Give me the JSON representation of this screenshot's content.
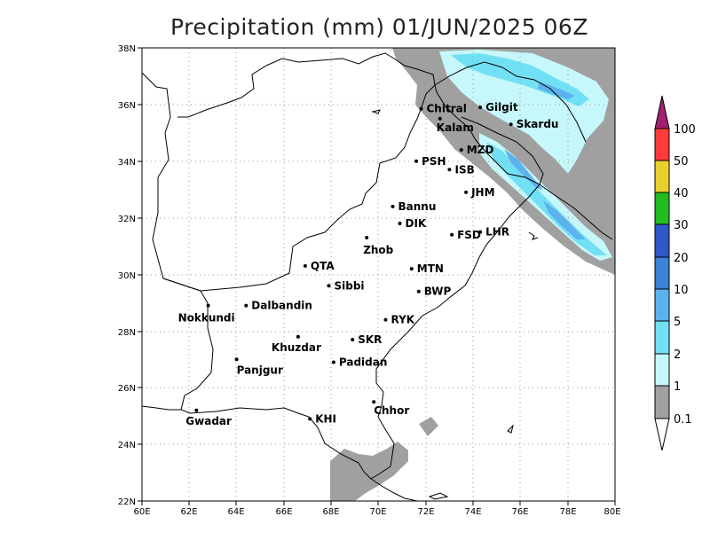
{
  "title": "Precipitation (mm) 01/JUN/2025 06Z",
  "map": {
    "lat_ticks": [
      "38N",
      "36N",
      "34N",
      "32N",
      "30N",
      "28N",
      "26N",
      "24N",
      "22N"
    ],
    "lon_ticks": [
      "60E",
      "62E",
      "64E",
      "66E",
      "68E",
      "70E",
      "72E",
      "74E",
      "76E",
      "78E",
      "80E"
    ],
    "grid": "dotted",
    "cities": [
      {
        "name": "Chitral",
        "lon": 71.8,
        "lat": 35.85
      },
      {
        "name": "Kalam",
        "lon": 72.6,
        "lat": 35.5
      },
      {
        "name": "Gilgit",
        "lon": 74.3,
        "lat": 35.9
      },
      {
        "name": "Skardu",
        "lon": 75.6,
        "lat": 35.3
      },
      {
        "name": "MZD",
        "lon": 73.5,
        "lat": 34.4
      },
      {
        "name": "PSH",
        "lon": 71.6,
        "lat": 34.0
      },
      {
        "name": "ISB",
        "lon": 73.0,
        "lat": 33.7
      },
      {
        "name": "JHM",
        "lon": 73.7,
        "lat": 32.9
      },
      {
        "name": "Bannu",
        "lon": 70.6,
        "lat": 32.4
      },
      {
        "name": "DIK",
        "lon": 70.9,
        "lat": 31.8
      },
      {
        "name": "FSD",
        "lon": 73.1,
        "lat": 31.4
      },
      {
        "name": "LHR",
        "lon": 74.3,
        "lat": 31.5
      },
      {
        "name": "Zhob",
        "lon": 69.5,
        "lat": 31.3
      },
      {
        "name": "QTA",
        "lon": 66.9,
        "lat": 30.3
      },
      {
        "name": "MTN",
        "lon": 71.4,
        "lat": 30.2
      },
      {
        "name": "Sibbi",
        "lon": 67.9,
        "lat": 29.6
      },
      {
        "name": "BWP",
        "lon": 71.7,
        "lat": 29.4
      },
      {
        "name": "Nokkundi",
        "lon": 62.8,
        "lat": 28.9
      },
      {
        "name": "Dalbandin",
        "lon": 64.4,
        "lat": 28.9
      },
      {
        "name": "RYK",
        "lon": 70.3,
        "lat": 28.4
      },
      {
        "name": "Khuzdar",
        "lon": 66.6,
        "lat": 27.8
      },
      {
        "name": "SKR",
        "lon": 68.9,
        "lat": 27.7
      },
      {
        "name": "Panjgur",
        "lon": 64.0,
        "lat": 27.0
      },
      {
        "name": "Padidan",
        "lon": 68.1,
        "lat": 26.9
      },
      {
        "name": "Chhor",
        "lon": 69.8,
        "lat": 25.5
      },
      {
        "name": "KHI",
        "lon": 67.1,
        "lat": 24.9
      },
      {
        "name": "Gwadar",
        "lon": 62.3,
        "lat": 25.2
      }
    ]
  },
  "colorbar": {
    "labels": [
      "100",
      "50",
      "40",
      "30",
      "20",
      "10",
      "5",
      "2",
      "1",
      "0.1"
    ],
    "colors": [
      "#a0216e",
      "#ff3b3b",
      "#e7d02e",
      "#22bb22",
      "#2f58c6",
      "#3b82d8",
      "#5db2ee",
      "#72e0f4",
      "#c6f7fb",
      "#a0a0a0"
    ]
  },
  "colors": {
    "trace": "#a0a0a0",
    "light": "#c6f7fb",
    "mid": "#72e0f4",
    "strong": "#5db2ee"
  }
}
